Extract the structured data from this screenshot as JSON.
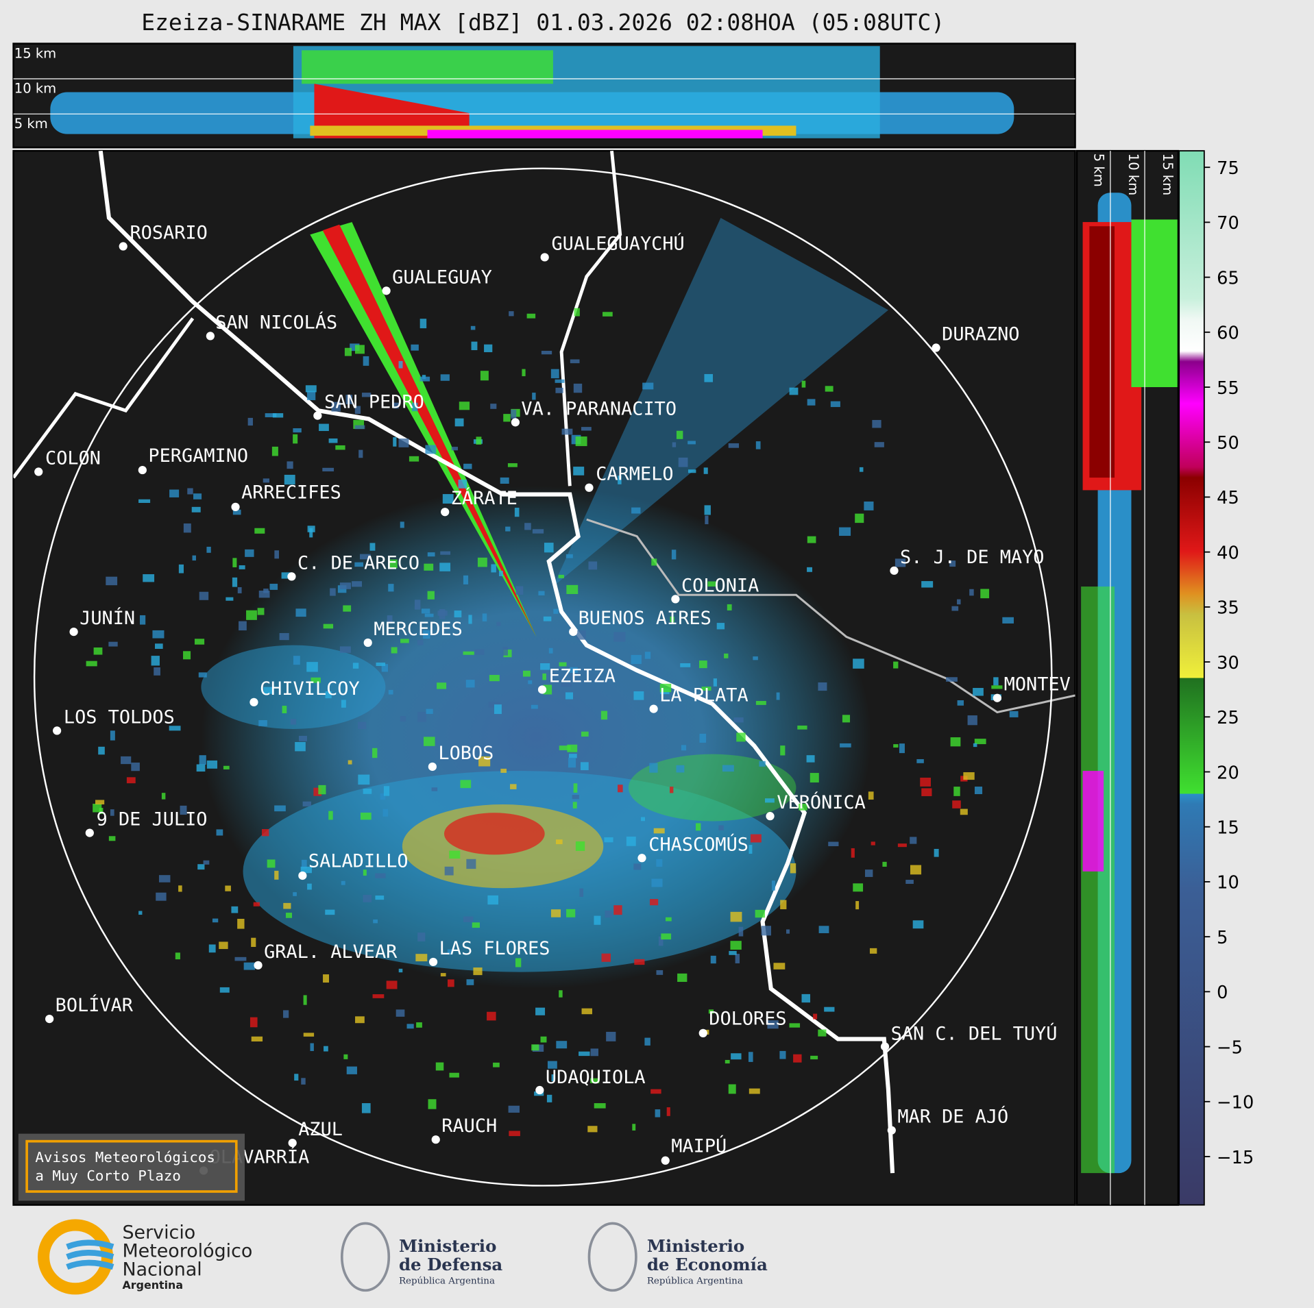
{
  "title": "Ezeiza-SINARAME ZH MAX [dBZ] 01.03.2026 02:08HOA (05:08UTC)",
  "top_panel": {
    "height_labels": [
      "15 km",
      "10 km",
      "5 km"
    ]
  },
  "side_panel": {
    "height_labels": [
      "5 km",
      "10 km",
      "15 km"
    ]
  },
  "cities": [
    {
      "name": "ROSARIO"
    },
    {
      "name": "GUALEGUAYCHÚ"
    },
    {
      "name": "GUALEGUAY"
    },
    {
      "name": "SAN NICOLÁS"
    },
    {
      "name": "DURAZNO"
    },
    {
      "name": "SAN PEDRO"
    },
    {
      "name": "VA. PARANACITO"
    },
    {
      "name": "COLON"
    },
    {
      "name": "PERGAMINO"
    },
    {
      "name": "CARMELO"
    },
    {
      "name": "ARRECIFES"
    },
    {
      "name": "ZÁRATE"
    },
    {
      "name": "S. J. DE MAYO"
    },
    {
      "name": "C. DE ARECO"
    },
    {
      "name": "COLONIA"
    },
    {
      "name": "BUENOS AIRES"
    },
    {
      "name": "JUNÍN"
    },
    {
      "name": "MERCEDES"
    },
    {
      "name": "MONTEV"
    },
    {
      "name": "EZEIZA"
    },
    {
      "name": "CHIVILCOY"
    },
    {
      "name": "LA PLATA"
    },
    {
      "name": "LOS TOLDOS"
    },
    {
      "name": "LOBOS"
    },
    {
      "name": "VERÓNICA"
    },
    {
      "name": "9 DE JULIO"
    },
    {
      "name": "CHASCOMÚS"
    },
    {
      "name": "SALADILLO"
    },
    {
      "name": "GRAL. ALVEAR"
    },
    {
      "name": "LAS FLORES"
    },
    {
      "name": "BOLÍVAR"
    },
    {
      "name": "DOLORES"
    },
    {
      "name": "SAN C. DEL TUYÚ"
    },
    {
      "name": "UDAQUIOLA"
    },
    {
      "name": "MAR DE AJÓ"
    },
    {
      "name": "RAUCH"
    },
    {
      "name": "AZUL"
    },
    {
      "name": "OLAVARRÍA"
    },
    {
      "name": "MAIPÚ"
    }
  ],
  "colorbar": {
    "vlim": [
      -19.4,
      76.5
    ],
    "ticks": [
      75,
      70,
      65,
      60,
      55,
      50,
      45,
      40,
      35,
      30,
      25,
      20,
      15,
      10,
      5,
      0,
      {
        "value": -5,
        "label": "−5"
      },
      {
        "value": -10,
        "label": "−10"
      },
      {
        "value": -15,
        "label": "−15"
      }
    ]
  },
  "warning_box": {
    "lines": [
      "Avisos Meteorológicos",
      "a Muy Corto Plazo"
    ]
  },
  "footer": {
    "smn": [
      "Servicio",
      "Meteorológico",
      "Nacional",
      "Argentina"
    ],
    "defensa": [
      "Ministerio",
      "de Defensa",
      "República Argentina"
    ],
    "economia": [
      "Ministerio",
      "de Economía",
      "República Argentina"
    ]
  }
}
